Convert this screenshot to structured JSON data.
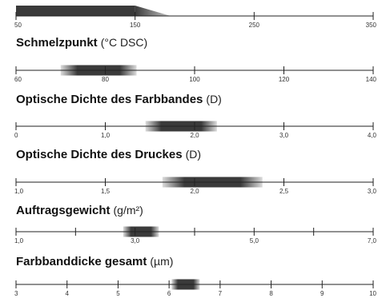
{
  "chart_data": [
    {
      "type": "range-bar",
      "title": "",
      "unit": "",
      "axis": {
        "min": 50,
        "max": 350,
        "ticks": [
          50,
          150,
          250,
          350
        ],
        "labels": [
          "50",
          "150",
          "250",
          "350"
        ]
      },
      "range": {
        "from": 50,
        "to": 150,
        "tail_to": 180
      }
    },
    {
      "type": "range-bar",
      "title": "Schmelzpunkt",
      "unit": "(°C DSC)",
      "axis": {
        "min": 60,
        "max": 140,
        "ticks": [
          60,
          80,
          100,
          120,
          140
        ],
        "labels": [
          "60",
          "80",
          "100",
          "120",
          "140"
        ]
      },
      "range": {
        "from": 70,
        "to": 87
      }
    },
    {
      "type": "range-bar",
      "title": "Optische Dichte des Farbbandes",
      "unit": "(D)",
      "axis": {
        "min": 0,
        "max": 4,
        "ticks": [
          0,
          1,
          2,
          3,
          4
        ],
        "labels": [
          "0",
          "1,0",
          "2,0",
          "3,0",
          "4,0"
        ]
      },
      "range": {
        "from": 1.45,
        "to": 2.25
      }
    },
    {
      "type": "range-bar",
      "title": "Optische Dichte des Druckes",
      "unit": "(D)",
      "axis": {
        "min": 1,
        "max": 3,
        "ticks": [
          1,
          1.5,
          2,
          2.5,
          3
        ],
        "labels": [
          "1,0",
          "1,5",
          "2,0",
          "2,5",
          "3,0"
        ]
      },
      "range": {
        "from": 1.82,
        "to": 2.38
      }
    },
    {
      "type": "range-bar",
      "title": "Auftragsgewicht",
      "unit": "(g/m²)",
      "axis": {
        "min": 1,
        "max": 7,
        "ticks": [
          1,
          2,
          3,
          4,
          5,
          6,
          7
        ],
        "labels": [
          "1,0",
          "",
          "3,0",
          "",
          "5,0",
          "",
          "7,0"
        ]
      },
      "range": {
        "from": 2.8,
        "to": 3.4
      }
    },
    {
      "type": "range-bar",
      "title": "Farbbanddicke gesamt",
      "unit": "(µm)",
      "axis": {
        "min": 3,
        "max": 10,
        "ticks": [
          3,
          4,
          5,
          6,
          7,
          8,
          9,
          10
        ],
        "labels": [
          "3",
          "4",
          "5",
          "6",
          "7",
          "8",
          "9",
          "10"
        ]
      },
      "range": {
        "from": 6.05,
        "to": 6.6
      }
    }
  ],
  "colors": {
    "bar_dark": "#3a3a3a",
    "bar_light": "#dcdcdc",
    "axis": "#222222",
    "text": "#111111"
  }
}
